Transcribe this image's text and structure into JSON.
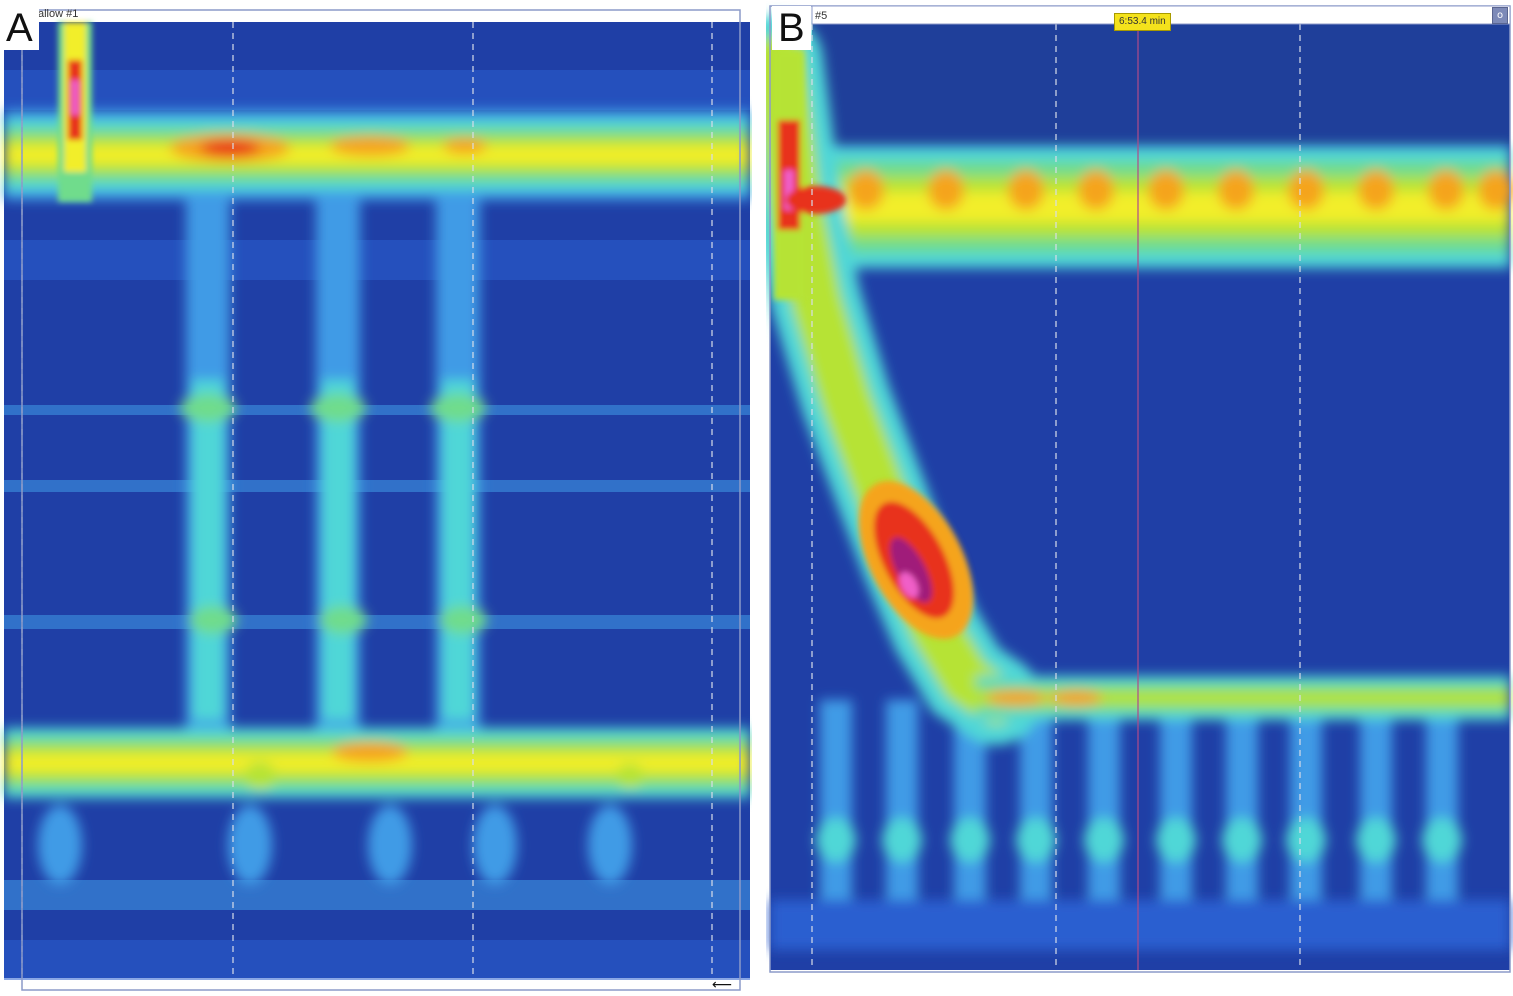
{
  "panels": [
    {
      "label": "A",
      "header_text": "allow #1"
    },
    {
      "label": "B",
      "header_text": "#5",
      "time_marker": "6:53.4 min"
    }
  ],
  "chart_data": [
    {
      "type": "heatmap",
      "title": "",
      "xlabel": "",
      "ylabel": "",
      "colorscale": [
        "#1f3fa6",
        "#2a5fd0",
        "#3f9be6",
        "#4fd7d7",
        "#6fdc8c",
        "#b6e335",
        "#f2ee2a",
        "#f5a41f",
        "#e8311e",
        "#a01f7a",
        "#f05ec8"
      ],
      "features": [
        "swallow pressure wave",
        "upper high-pressure band",
        "lower high-pressure band",
        "three repeated vertical pressure columns"
      ]
    },
    {
      "type": "heatmap",
      "title": "",
      "xlabel": "",
      "ylabel": "",
      "colorscale": [
        "#1f3fa6",
        "#2a5fd0",
        "#3f9be6",
        "#4fd7d7",
        "#6fdc8c",
        "#b6e335",
        "#f2ee2a",
        "#f5a41f",
        "#e8311e",
        "#a01f7a",
        "#f05ec8"
      ],
      "features": [
        "swallow pressure wave",
        "upper high-pressure band",
        "lower high-pressure band",
        "repeated vertical pressure columns"
      ]
    }
  ],
  "colors": {
    "background": "#2a52be",
    "frame": "#8c9ac8",
    "grid": "#d8dde8"
  },
  "icons": {
    "corner_button": "settings-icon",
    "arrow": "left-arrow-icon"
  }
}
